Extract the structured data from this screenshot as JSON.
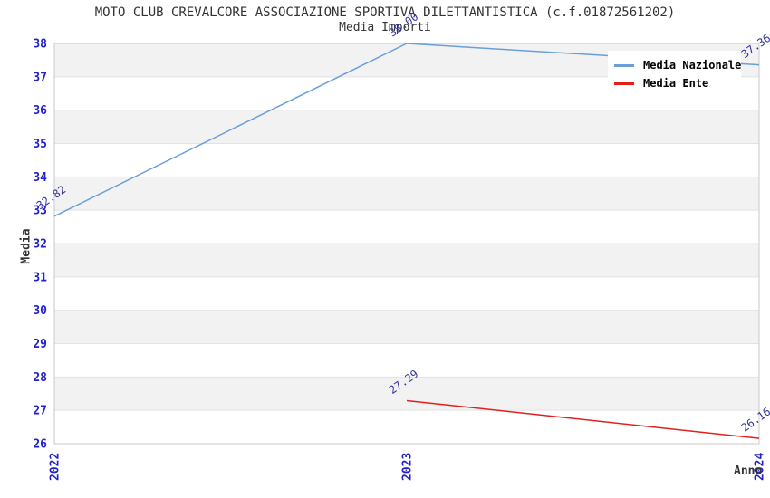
{
  "chart_data": {
    "type": "line",
    "title": "MOTO CLUB CREVALCORE ASSOCIAZIONE SPORTIVA DILETTANTISTICA (c.f.01872561202)",
    "subtitle": "Media Importi",
    "xlabel": "Anno",
    "ylabel": "Media",
    "categories": [
      "2022",
      "2023",
      "2024"
    ],
    "series": [
      {
        "name": "Media Nazionale",
        "color": "#6a9fd8",
        "values": [
          32.82,
          38.0,
          37.36
        ]
      },
      {
        "name": "Media Ente",
        "color": "#e02020",
        "values": [
          null,
          27.29,
          26.16
        ]
      }
    ],
    "ylim": [
      26,
      38
    ],
    "ytick_step": 1,
    "grid": true,
    "legend_position": "top-right",
    "value_label_decimals": 2,
    "colors": {
      "tick_label": "#2222cc",
      "point_label": "#333399",
      "band": "#f2f2f2",
      "gridline": "#e2e2e2",
      "border": "#c9c9c9",
      "text": "#333333"
    }
  }
}
